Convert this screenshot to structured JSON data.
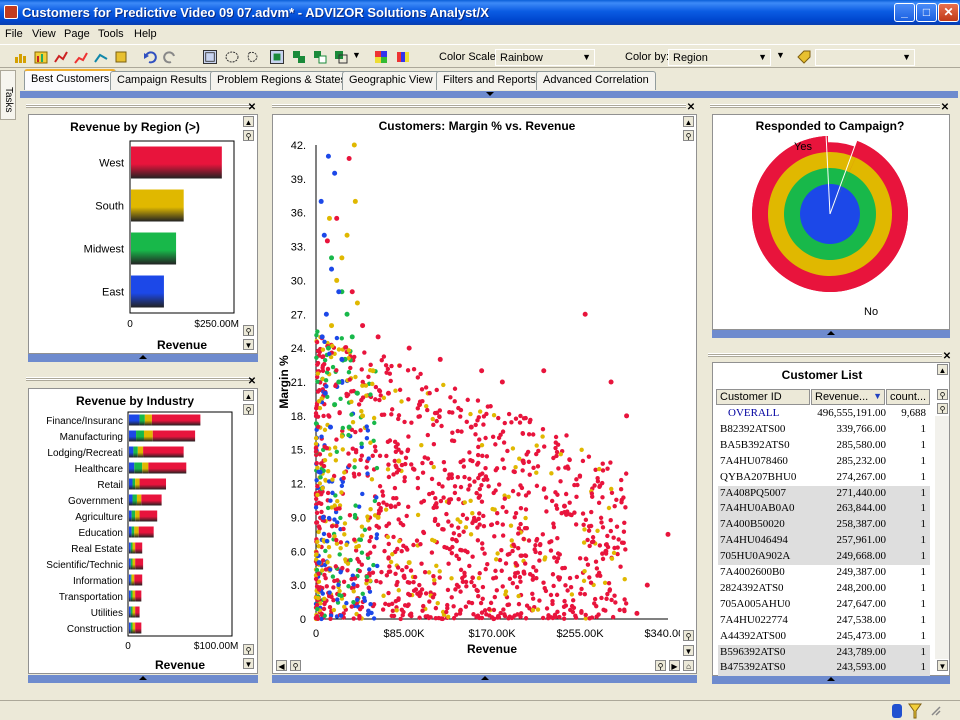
{
  "window": {
    "title": "Customers for Predictive Video 09 07.advm* - ADVIZOR Solutions Analyst/X",
    "min": "_",
    "max": "□",
    "close": "✕"
  },
  "menu": [
    "File",
    "View",
    "Page",
    "Tools",
    "Help"
  ],
  "toolbar": {
    "color_scale_label": "Color Scale:",
    "color_scale_value": "Rainbow",
    "color_by_label": "Color by:",
    "color_by_value": "Region"
  },
  "side_strip": {
    "label": "Tasks"
  },
  "tabs": [
    {
      "label": "Best Customers",
      "active": true
    },
    {
      "label": "Campaign Results"
    },
    {
      "label": "Problem Regions & States"
    },
    {
      "label": "Geographic View"
    },
    {
      "label": "Filters and Reports"
    },
    {
      "label": "Advanced Correlation"
    }
  ],
  "colors": {
    "west": "#e8143c",
    "south": "#e0b800",
    "midwest": "#18b84a",
    "east": "#1c48e8",
    "accent_bar": "#6e8bce"
  },
  "region_chart": {
    "title": "Revenue by Region (>)",
    "xlabel": "Revenue",
    "ticks": [
      "0",
      "$250.00M"
    ],
    "chart_data": {
      "type": "bar",
      "categories": [
        "West",
        "South",
        "Midwest",
        "East"
      ],
      "values": [
        262,
        152,
        130,
        95
      ],
      "xlim": [
        0,
        300
      ],
      "unit": "$M"
    }
  },
  "industry_chart": {
    "title": "Revenue by Industry",
    "xlabel": "Revenue",
    "ticks": [
      "0",
      "$100.00M"
    ],
    "chart_data": {
      "type": "bar",
      "stacked": true,
      "categories": [
        "Finance/Insuranc",
        "Manufacturing",
        "Lodging/Recreati",
        "Healthcare",
        "Retail",
        "Government",
        "Agriculture",
        "Education",
        "Real Estate",
        "Scientific/Technic",
        "Information",
        "Transportation",
        "Utilities",
        "Construction"
      ],
      "series": [
        {
          "name": "East",
          "values": [
            12,
            8,
            5,
            6,
            4,
            4,
            3,
            3,
            2,
            2,
            2,
            2,
            2,
            2
          ]
        },
        {
          "name": "Midwest",
          "values": [
            6,
            9,
            5,
            9,
            3,
            5,
            4,
            3,
            2,
            2,
            1,
            2,
            2,
            2
          ]
        },
        {
          "name": "South",
          "values": [
            8,
            10,
            6,
            7,
            5,
            5,
            5,
            5,
            3,
            3,
            3,
            3,
            3,
            3
          ]
        },
        {
          "name": "West",
          "values": [
            55,
            48,
            46,
            43,
            30,
            23,
            20,
            17,
            8,
            9,
            9,
            7,
            5,
            7
          ]
        }
      ],
      "xlim": [
        0,
        118
      ],
      "unit": "$M"
    }
  },
  "scatter_chart": {
    "title": "Customers:  Margin % vs. Revenue",
    "xlabel": "Revenue",
    "ylabel": "Margin %",
    "x_ticks": [
      "0",
      "$85.00K",
      "$170.00K",
      "$255.00K",
      "$340.00K"
    ],
    "y_ticks": [
      "42.",
      "39.",
      "36.",
      "33.",
      "30.",
      "27.",
      "24.",
      "21.",
      "18.",
      "15.",
      "12.",
      "9.0",
      "6.0",
      "3.0",
      "0"
    ],
    "chart_data": {
      "type": "scatter",
      "xlim": [
        0,
        340000
      ],
      "ylim": [
        0,
        42
      ],
      "series": [
        {
          "name": "West",
          "points": [
            [
              32000,
              40.8
            ],
            [
              11000,
              33.5
            ],
            [
              20000,
              35.5
            ],
            [
              35000,
              29
            ],
            [
              45000,
              26
            ],
            [
              60000,
              25
            ],
            [
              90000,
              24
            ],
            [
              120000,
              23
            ],
            [
              160000,
              22
            ],
            [
              180000,
              21
            ],
            [
              220000,
              22
            ],
            [
              260000,
              27
            ],
            [
              285000,
              21
            ],
            [
              300000,
              18
            ],
            [
              200000,
              14
            ],
            [
              240000,
              10
            ],
            [
              280000,
              6
            ],
            [
              320000,
              3
            ],
            [
              340000,
              7.5
            ],
            [
              310000,
              0.5
            ],
            [
              150000,
              17
            ],
            [
              100000,
              19
            ],
            [
              70000,
              20
            ]
          ]
        },
        {
          "name": "South",
          "points": [
            [
              37000,
              42
            ],
            [
              13000,
              35.5
            ],
            [
              38000,
              37
            ],
            [
              30000,
              34
            ],
            [
              25000,
              32
            ],
            [
              40000,
              28
            ],
            [
              55000,
              22
            ],
            [
              45000,
              18
            ],
            [
              80000,
              14
            ],
            [
              60000,
              9
            ],
            [
              90000,
              5
            ],
            [
              20000,
              30
            ],
            [
              15000,
              26
            ]
          ]
        },
        {
          "name": "Midwest",
          "points": [
            [
              15000,
              32
            ],
            [
              25000,
              29
            ],
            [
              30000,
              27
            ],
            [
              35000,
              25
            ],
            [
              28000,
              23
            ],
            [
              22000,
              21
            ],
            [
              40000,
              20
            ],
            [
              18000,
              19
            ],
            [
              32000,
              17
            ],
            [
              12000,
              24
            ]
          ]
        },
        {
          "name": "East",
          "points": [
            [
              12000,
              41
            ],
            [
              18000,
              39.5
            ],
            [
              5000,
              37
            ],
            [
              8000,
              34
            ],
            [
              15000,
              31
            ],
            [
              22000,
              29
            ],
            [
              10000,
              27
            ],
            [
              6000,
              25
            ],
            [
              25000,
              23
            ],
            [
              9000,
              20
            ],
            [
              14000,
              17
            ],
            [
              4000,
              13
            ],
            [
              7000,
              9
            ],
            [
              3000,
              5
            ]
          ]
        }
      ]
    }
  },
  "pie_chart": {
    "title": "Responded to Campaign?",
    "label_yes": "Yes",
    "label_no": "No",
    "chart_data": {
      "type": "pie",
      "categories": [
        "Yes",
        "No"
      ],
      "values": [
        6,
        94
      ],
      "rings": [
        "West",
        "South",
        "Midwest",
        "East"
      ]
    }
  },
  "customer_list": {
    "title": "Customer List",
    "columns": [
      "Customer ID",
      "Revenue...",
      "count..."
    ],
    "rows": [
      {
        "id": "OVERALL",
        "revenue": "496,555,191.00",
        "count": "9,688",
        "overall": true
      },
      {
        "id": "B82392ATS00",
        "revenue": "339,766.00",
        "count": "1"
      },
      {
        "id": "BA5B392ATS0",
        "revenue": "285,580.00",
        "count": "1"
      },
      {
        "id": "7A4HU078460",
        "revenue": "285,232.00",
        "count": "1"
      },
      {
        "id": "QYBA207BHU0",
        "revenue": "274,267.00",
        "count": "1"
      },
      {
        "id": "7A408PQ5007",
        "revenue": "271,440.00",
        "count": "1",
        "shaded": true
      },
      {
        "id": "7A4HU0AB0A0",
        "revenue": "263,844.00",
        "count": "1",
        "shaded": true
      },
      {
        "id": "7A400B50020",
        "revenue": "258,387.00",
        "count": "1",
        "shaded": true
      },
      {
        "id": "7A4HU046494",
        "revenue": "257,961.00",
        "count": "1",
        "shaded": true
      },
      {
        "id": "705HU0A902A",
        "revenue": "249,668.00",
        "count": "1",
        "shaded": true
      },
      {
        "id": "7A4002600B0",
        "revenue": "249,387.00",
        "count": "1"
      },
      {
        "id": "2824392ATS0",
        "revenue": "248,200.00",
        "count": "1"
      },
      {
        "id": "705A005AHU0",
        "revenue": "247,647.00",
        "count": "1"
      },
      {
        "id": "7A4HU022774",
        "revenue": "247,538.00",
        "count": "1"
      },
      {
        "id": "A44392ATS00",
        "revenue": "245,473.00",
        "count": "1"
      },
      {
        "id": "B596392ATS0",
        "revenue": "243,789.00",
        "count": "1",
        "shaded": true
      },
      {
        "id": "B475392ATS0",
        "revenue": "243,593.00",
        "count": "1",
        "shaded": true
      }
    ]
  }
}
